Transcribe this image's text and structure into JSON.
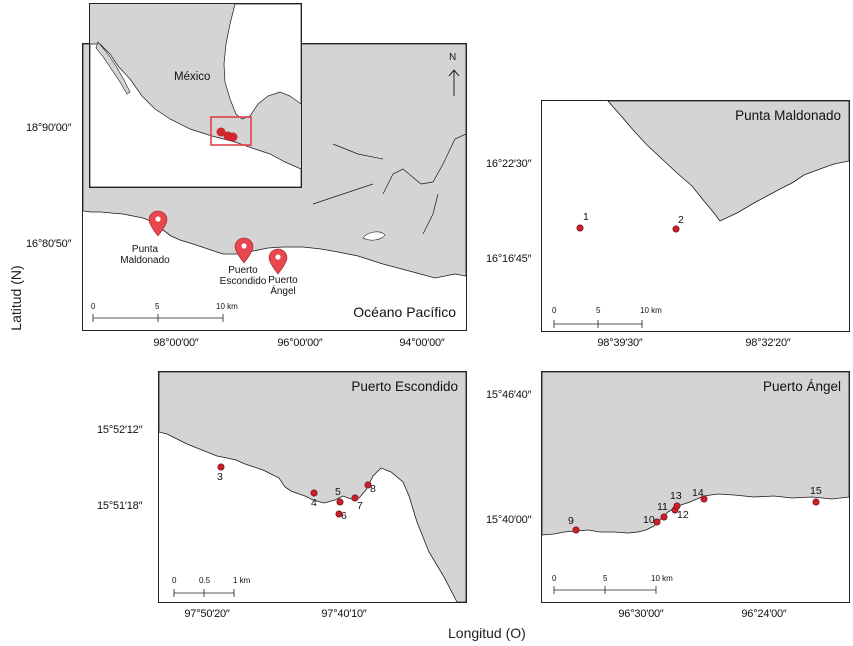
{
  "axis_titles": {
    "y": "Latitud (N)",
    "x": "Longitud (O)"
  },
  "colors": {
    "land": "#d4d4d4",
    "coast": "#1a1a1a",
    "marker": "#e8474f",
    "site": "#cc1f2a",
    "inset_box": "#e0404a"
  },
  "main_map": {
    "sea_label": "Océano Pacífico",
    "lat_ticks": [
      "18°90′00″",
      "16°80′50″"
    ],
    "lon_ticks": [
      "98°00′00″",
      "96°00′00″",
      "94°00′00″"
    ],
    "north_label": "N",
    "scale": [
      "0",
      "5",
      "10 km"
    ],
    "towns": [
      {
        "name": "Punta Maldonado",
        "line1": "Punta",
        "line2": "Maldonado"
      },
      {
        "name": "Puerto Escondido",
        "line1": "Puerto",
        "line2": "Escondido"
      },
      {
        "name": "Puerto Ángel",
        "line1": "Puerto",
        "line2": "Ángel"
      }
    ],
    "inset": {
      "country_label": "México"
    }
  },
  "punta_maldonado": {
    "title": "Punta Maldonado",
    "lat_ticks": [
      "16°22′30″",
      "16°16′45″"
    ],
    "lon_ticks": [
      "98°39′30″",
      "98°32′20″"
    ],
    "scale": [
      "0",
      "5",
      "10 km"
    ],
    "sites": [
      "1",
      "2"
    ]
  },
  "puerto_escondido": {
    "title": "Puerto Escondido",
    "lat_ticks": [
      "15°52′12″",
      "15°51′18″"
    ],
    "lon_ticks": [
      "97°50′20″",
      "97°40′10″"
    ],
    "scale": [
      "0",
      "0.5",
      "1 km"
    ],
    "sites": [
      "3",
      "4",
      "5",
      "6",
      "7",
      "8"
    ]
  },
  "puerto_angel": {
    "title": "Puerto Ángel",
    "lat_ticks": [
      "15°46′40″",
      "15°40′00″"
    ],
    "lon_ticks": [
      "96°30′00″",
      "96°24′00″"
    ],
    "scale": [
      "0",
      "5",
      "10 km"
    ],
    "sites": [
      "9",
      "10",
      "11",
      "12",
      "13",
      "14",
      "15"
    ]
  }
}
